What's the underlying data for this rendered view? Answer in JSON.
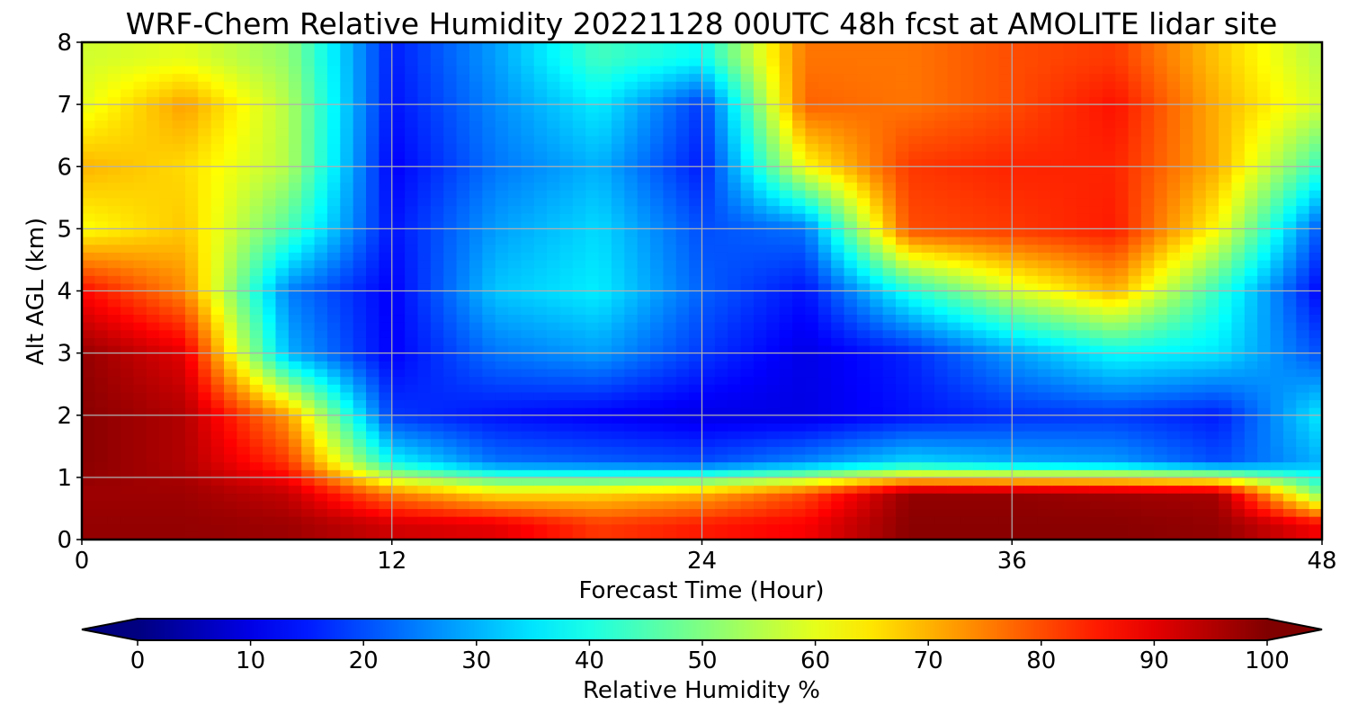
{
  "chart_data": {
    "type": "heatmap",
    "title": "WRF-Chem Relative Humidity 20221128 00UTC 48h fcst at AMOLITE lidar site",
    "xlabel": "Forecast Time (Hour)",
    "ylabel": "Alt AGL (km)",
    "xlim": [
      0,
      48
    ],
    "ylim": [
      0,
      8
    ],
    "x_ticks": [
      "0",
      "12",
      "24",
      "36",
      "48"
    ],
    "y_ticks": [
      "0",
      "1",
      "2",
      "3",
      "4",
      "5",
      "6",
      "7",
      "8"
    ],
    "grid": true,
    "colorbar": {
      "label": "Relative Humidity %",
      "range": [
        0,
        100
      ],
      "ticks": [
        "0",
        "10",
        "20",
        "30",
        "40",
        "50",
        "60",
        "70",
        "80",
        "90",
        "100"
      ],
      "extend": "both",
      "colormap": "jet"
    },
    "z_units": "%",
    "x": [
      0,
      4,
      8,
      12,
      16,
      20,
      24,
      28,
      32,
      36,
      40,
      44,
      48
    ],
    "y": [
      0.25,
      0.75,
      1.25,
      2,
      3,
      4,
      5,
      6,
      7,
      7.75
    ],
    "z": [
      [
        98,
        98,
        97,
        92,
        90,
        82,
        85,
        88,
        99,
        99,
        99,
        98,
        88
      ],
      [
        97,
        97,
        93,
        75,
        65,
        66,
        70,
        80,
        98,
        98,
        97,
        96,
        48
      ],
      [
        99,
        95,
        82,
        38,
        24,
        22,
        20,
        26,
        34,
        30,
        28,
        20,
        30
      ],
      [
        99,
        95,
        72,
        18,
        14,
        12,
        10,
        10,
        14,
        17,
        18,
        15,
        36
      ],
      [
        98,
        90,
        30,
        12,
        24,
        28,
        18,
        10,
        16,
        28,
        38,
        35,
        20
      ],
      [
        87,
        74,
        25,
        12,
        32,
        36,
        22,
        14,
        40,
        58,
        70,
        42,
        12
      ],
      [
        62,
        68,
        45,
        14,
        28,
        34,
        20,
        24,
        80,
        82,
        85,
        62,
        20
      ],
      [
        70,
        66,
        55,
        12,
        24,
        30,
        15,
        62,
        82,
        84,
        84,
        70,
        42
      ],
      [
        60,
        72,
        55,
        14,
        26,
        36,
        18,
        78,
        76,
        80,
        86,
        70,
        58
      ],
      [
        58,
        60,
        52,
        15,
        28,
        44,
        38,
        76,
        76,
        80,
        82,
        68,
        55
      ]
    ]
  }
}
